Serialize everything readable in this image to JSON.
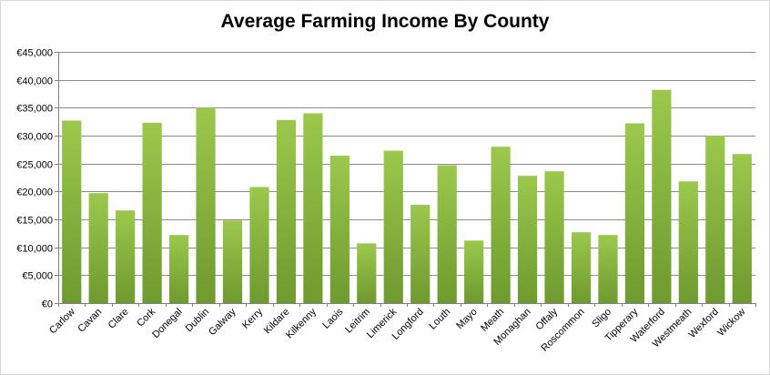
{
  "chart_data": {
    "type": "bar",
    "title": "Average Farming Income By County",
    "xlabel": "",
    "ylabel": "",
    "ylim": [
      0,
      45000
    ],
    "y_ticks": [
      0,
      5000,
      10000,
      15000,
      20000,
      25000,
      30000,
      35000,
      40000,
      45000
    ],
    "y_tick_labels": [
      "€0",
      "€5,000",
      "€10,000",
      "€15,000",
      "€20,000",
      "€25,000",
      "€30,000",
      "€35,000",
      "€40,000",
      "€45,000"
    ],
    "grid": true,
    "legend": "none",
    "bar_color_top": "#9bc84c",
    "bar_color_bottom": "#6e9a2f",
    "categories": [
      "Carlow",
      "Cavan",
      "Clare",
      "Cork",
      "Donegal",
      "Dublin",
      "Galway",
      "Kerry",
      "Kildare",
      "Kilkenny",
      "Laois",
      "Leitrim",
      "Limerick",
      "Longford",
      "Louth",
      "Mayo",
      "Meath",
      "Monaghan",
      "Offaly",
      "Roscommon",
      "Sligo",
      "Tipperary",
      "Waterford",
      "Westmeath",
      "Wexford",
      "Wickow"
    ],
    "values": [
      32700,
      19700,
      16600,
      32300,
      12200,
      35000,
      14800,
      20800,
      32800,
      34000,
      26400,
      10700,
      27300,
      17600,
      24700,
      11200,
      28000,
      22800,
      23600,
      12700,
      12200,
      32200,
      38200,
      21800,
      30000,
      26700
    ]
  }
}
